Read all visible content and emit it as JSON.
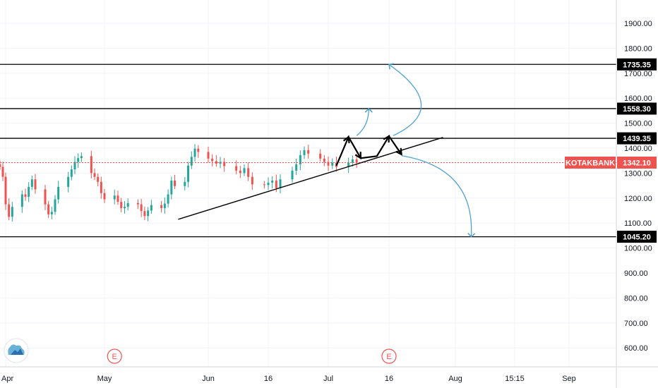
{
  "colors": {
    "up": "#26a69a",
    "down": "#ef5350",
    "price_line": "#ef5350",
    "grid": "#f0f3fa",
    "axis_text": "#131722",
    "arrow": "#4fa3d1",
    "trend": "#000000",
    "event_badge": "#ef5350"
  },
  "icons": {
    "logo": "tradingview-cloud-icon",
    "event": "earnings-event-icon"
  },
  "chart_data": {
    "type": "candlestick",
    "symbol": "KOTAKBANK",
    "last_price": 1342.1,
    "last_price_label": "1342.10",
    "ylim": [
      480,
      2020
    ],
    "y_ticks": [
      600,
      700,
      800,
      900,
      1000,
      1100,
      1200,
      1300,
      1400,
      1500,
      1600,
      1700,
      1800,
      1900
    ],
    "y_tick_labels": [
      "600.00",
      "700.00",
      "800.00",
      "900.00",
      "1000.00",
      "1100.00",
      "1200.00",
      "1300.00",
      "1400.00",
      "1500.00",
      "1600.00",
      "1700.00",
      "1800.00",
      "1900.00"
    ],
    "x_ticks": [
      {
        "label": "Apr",
        "date": "2020-04-01"
      },
      {
        "label": "May",
        "date": "2020-05-01"
      },
      {
        "label": "Jun",
        "date": "2020-06-01"
      },
      {
        "label": "16",
        "date": "2020-06-16"
      },
      {
        "label": "Jul",
        "date": "2020-07-01"
      },
      {
        "label": "16",
        "date": "2020-07-16"
      },
      {
        "label": "Aug",
        "date": "2020-08-01"
      },
      {
        "label": "15:15",
        "date": "2020-08-16"
      },
      {
        "label": "Sep",
        "date": "2020-09-01"
      }
    ],
    "levels": [
      {
        "value": 1735.35,
        "label": "1735.35"
      },
      {
        "value": 1558.3,
        "label": "1558.30"
      },
      {
        "value": 1439.35,
        "label": "1439.35"
      },
      {
        "value": 1045.2,
        "label": "1045.20"
      }
    ],
    "closes": [
      1325,
      1285,
      1175,
      1125,
      1165,
      1215,
      1205,
      1245,
      1275,
      1235,
      1175,
      1135,
      1145,
      1195,
      1245,
      1285,
      1315,
      1345,
      1360,
      1368,
      1300,
      1285,
      1265,
      1220,
      1195,
      1210,
      1185,
      1160,
      1165,
      1180,
      1175,
      1148,
      1128,
      1150,
      1172,
      1160,
      1178,
      1215,
      1270,
      1248,
      1265,
      1330,
      1365,
      1398,
      1385,
      1358,
      1348,
      1338,
      1345,
      1328,
      1310,
      1300,
      1320,
      1285,
      1255,
      1252,
      1262,
      1270,
      1240,
      1275,
      1310,
      1335,
      1372,
      1392,
      1378,
      1358,
      1345,
      1330,
      1342,
      1325,
      1342,
      1355,
      1342
    ],
    "trendline": {
      "from": {
        "date": "2020-05-23",
        "value": 1115
      },
      "to": {
        "date": "2020-07-29",
        "value": 1443
      }
    },
    "zigzag": [
      {
        "date": "2020-07-03",
        "value": 1330
      },
      {
        "date": "2020-07-06",
        "value": 1445
      },
      {
        "date": "2020-07-09",
        "value": 1360
      },
      {
        "date": "2020-07-13",
        "value": 1368
      },
      {
        "date": "2020-07-16",
        "value": 1448
      },
      {
        "date": "2020-07-19",
        "value": 1375
      }
    ],
    "zigzag_arrowheads": [
      1,
      2,
      4,
      5
    ],
    "projection_arrows": [
      {
        "from": {
          "date": "2020-07-08",
          "value": 1450
        },
        "ctrl": {
          "date": "2020-07-11",
          "value": 1490
        },
        "to": {
          "date": "2020-07-11",
          "value": 1558
        }
      },
      {
        "from": {
          "date": "2020-07-17",
          "value": 1450
        },
        "ctrl": {
          "date": "2020-07-31",
          "value": 1560
        },
        "to": {
          "date": "2020-07-16",
          "value": 1735
        }
      },
      {
        "from": {
          "date": "2020-07-19",
          "value": 1370
        },
        "ctrl": {
          "date": "2020-08-06",
          "value": 1320
        },
        "to": {
          "date": "2020-08-05",
          "value": 1045
        }
      }
    ],
    "event_markers": [
      {
        "date": "2020-05-04",
        "label": "E"
      },
      {
        "date": "2020-07-16",
        "label": "E"
      }
    ]
  }
}
